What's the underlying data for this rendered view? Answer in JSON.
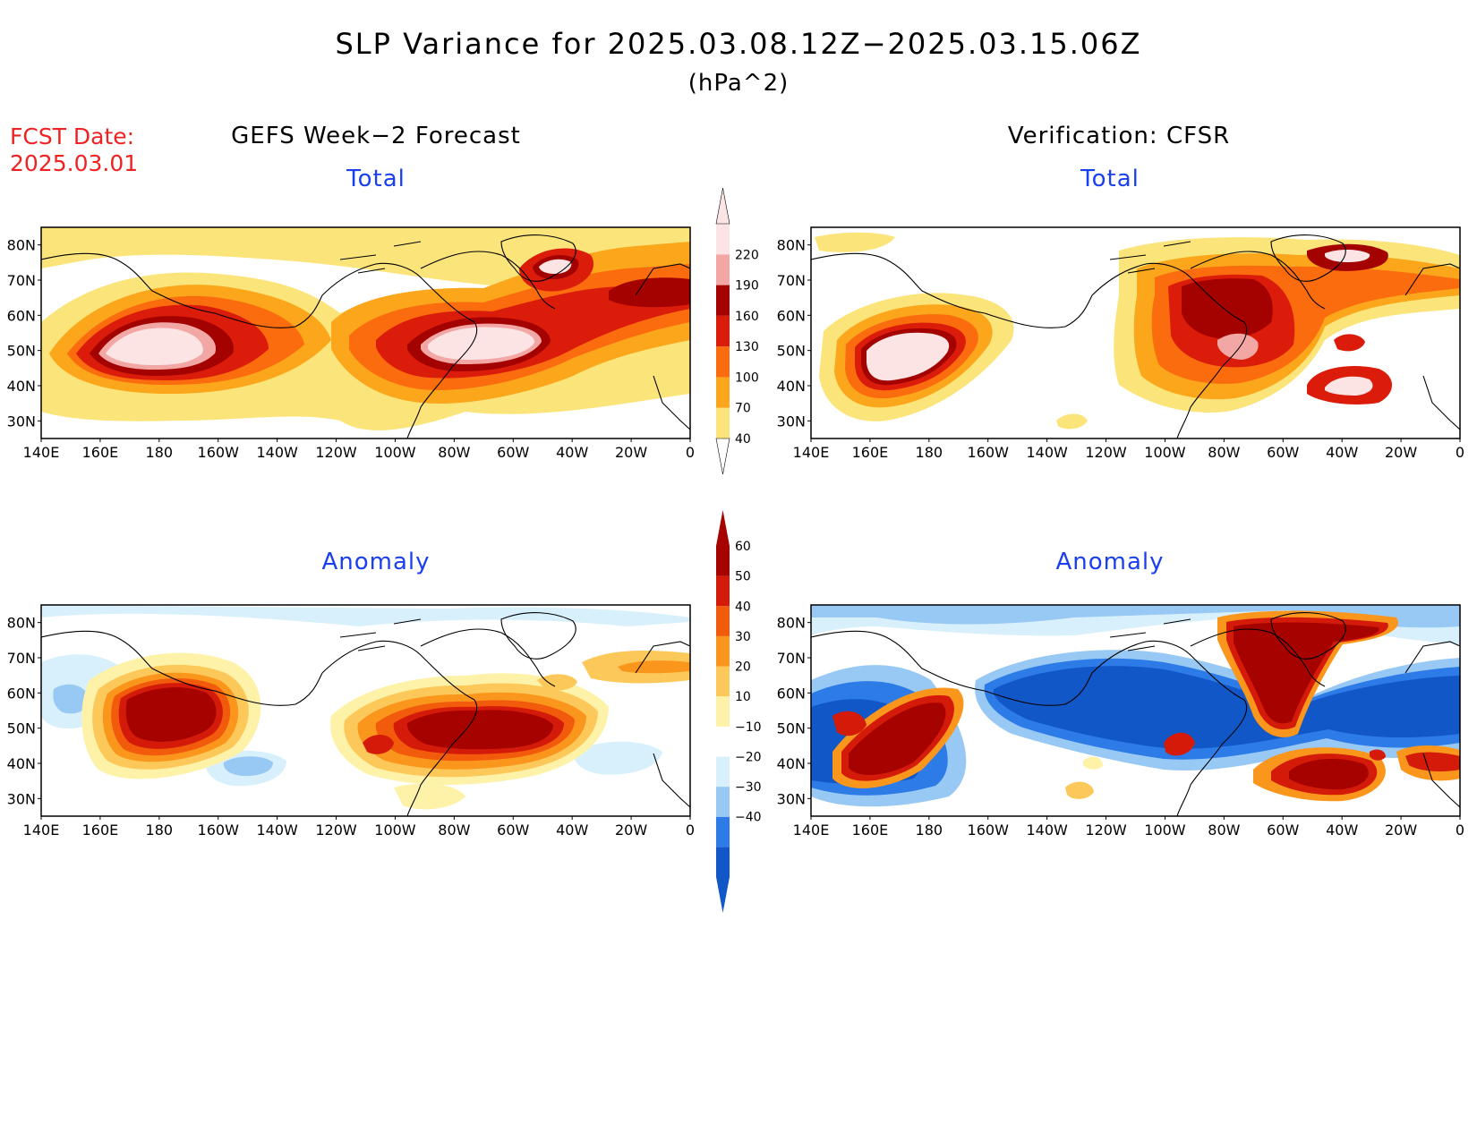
{
  "title": "SLP Variance for 2025.03.08.12Z−2025.03.15.06Z",
  "units": "(hPa^2)",
  "fcst_label": "FCST Date:",
  "fcst_date": "2025.03.01",
  "left_column_title": "GEFS Week−2 Forecast",
  "right_column_title": "Verification: CFSR",
  "panels": [
    {
      "title": "Total"
    },
    {
      "title": "Total"
    },
    {
      "title": "Anomaly"
    },
    {
      "title": "Anomaly"
    }
  ],
  "lat_labels": [
    "80N",
    "70N",
    "60N",
    "50N",
    "40N",
    "30N"
  ],
  "lon_labels": [
    "140E",
    "160E",
    "180",
    "160W",
    "140W",
    "120W",
    "100W",
    "80W",
    "60W",
    "40W",
    "20W",
    "0"
  ],
  "total_colorbar": {
    "ticks": [
      "40",
      "70",
      "100",
      "130",
      "160",
      "190",
      "220"
    ],
    "colors": [
      "#fbe57a",
      "#fba61b",
      "#fa6c0e",
      "#dc1c0a",
      "#a30200",
      "#f2a7a5",
      "#fce3e4"
    ]
  },
  "anomaly_colorbar": {
    "ticks": [
      "60",
      "50",
      "40",
      "30",
      "20",
      "10",
      "−10",
      "−20",
      "−30",
      "−40"
    ],
    "colors": [
      "#1157c8",
      "#2d7be6",
      "#98c8f4",
      "#d8f0fb",
      "#ffffff",
      "#fdf2a8",
      "#fdc85a",
      "#fb961c",
      "#f25a0c",
      "#d41a08",
      "#a50200"
    ]
  },
  "colors": {
    "fcst_text": "#ee2222",
    "panel_title": "#1a3ff0"
  }
}
